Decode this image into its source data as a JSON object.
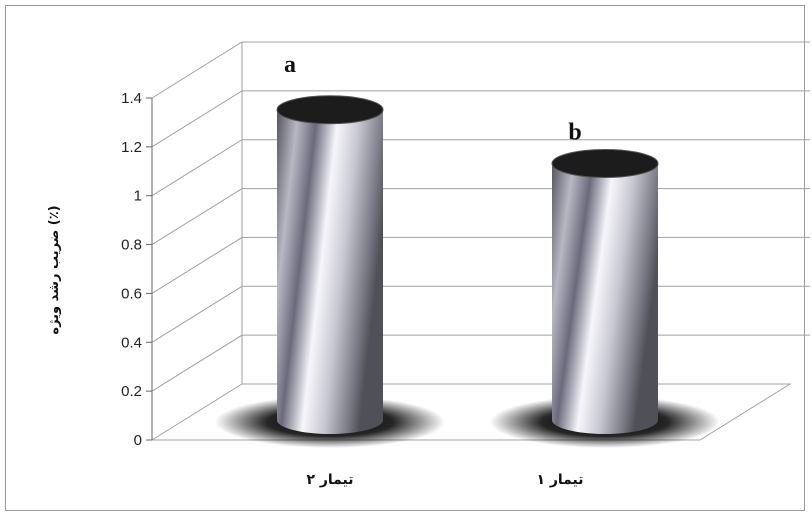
{
  "chart_data": {
    "type": "bar",
    "style": "3d-cylinder",
    "categories": [
      "تیمار ۲",
      "تیمار ۱"
    ],
    "series": [
      {
        "values": [
          1.27,
          1.05
        ]
      }
    ],
    "annotations": [
      "a",
      "b"
    ],
    "title": "",
    "xlabel": "",
    "ylabel": "ضریب رشد ویژه (٪)",
    "ylim": [
      0,
      1.4
    ],
    "yticks": [
      "0",
      "0.2",
      "0.4",
      "0.6",
      "0.8",
      "1",
      "1.2",
      "1.4"
    ],
    "grid": true,
    "legend": "none",
    "colors": {
      "cylinder_dark": "#4a4a55",
      "cylinder_light": "#f4f4f8",
      "top": "#1c1c1c",
      "grid": "#a0a0a0"
    }
  }
}
